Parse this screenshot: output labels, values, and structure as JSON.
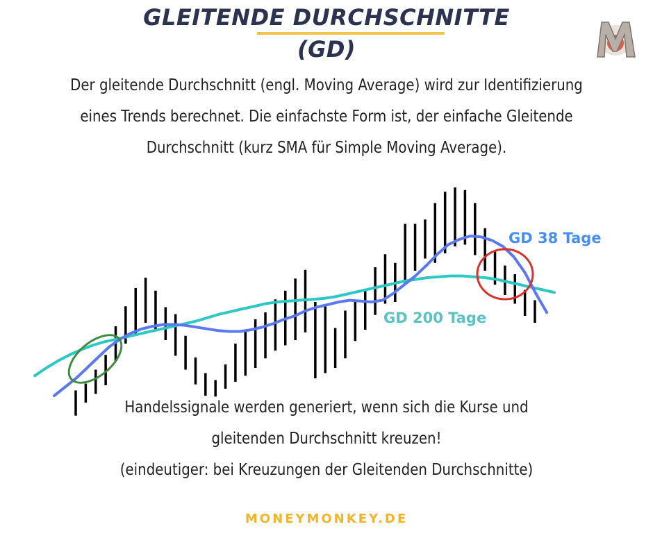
{
  "header": {
    "title_line1": "GLEITENDE DURCHSCHNITTE",
    "title_line2": "(GD)"
  },
  "intro_text": "Der gleitende Durchschnitt (engl. Moving Average) wird zur Identifizierung eines Trends berechnet. Die einfachste Form ist, der einfache Gleitende Durchschnitt (kurz SMA für Simple Moving Average).",
  "signal_text": {
    "line1": "Handelssignale werden generiert, wenn sich die Kurse und",
    "line2": "gleitenden Durchschnitt kreuzen!",
    "line3": "(eindeutiger: bei Kreuzungen der Gleitenden Durchschnitte)"
  },
  "footer": "MONEYMONKEY.DE",
  "logo": {
    "icon": "monkey-m-logo-icon",
    "letter": "M"
  },
  "colors": {
    "title": "#2c3350",
    "underline": "#f2c24a",
    "gd38": "#5b78ee",
    "gd200": "#2ec8c4",
    "green_circle": "#3e8c3e",
    "red_circle": "#d9302a",
    "footer": "#f2b52a"
  },
  "chart_data": {
    "type": "line",
    "series": [
      {
        "name": "GD 38 Tage",
        "values": [
          12,
          22,
          32,
          44,
          56,
          68,
          77,
          84,
          89,
          92,
          94,
          94,
          93,
          91,
          89,
          87,
          86,
          86,
          88,
          91,
          95,
          100,
          104,
          110,
          114,
          117,
          120,
          122,
          121,
          120,
          122,
          130,
          140,
          150,
          162,
          175,
          186,
          192,
          196,
          195,
          191,
          184,
          172,
          154,
          130,
          108
        ]
      },
      {
        "name": "GD 200 Tage",
        "values": [
          35,
          44,
          52,
          59,
          65,
          70,
          74,
          77,
          80,
          83,
          86,
          89,
          92,
          95,
          98,
          102,
          106,
          109,
          112,
          115,
          118,
          120,
          121,
          122,
          123,
          124,
          126,
          129,
          132,
          135,
          138,
          141,
          144,
          146,
          148,
          149,
          150,
          150,
          149,
          148,
          146,
          143,
          140,
          137,
          134,
          131
        ]
      }
    ],
    "ohlc": [
      [
        -11,
        18
      ],
      [
        4,
        26
      ],
      [
        14,
        42
      ],
      [
        24,
        59
      ],
      [
        52,
        92
      ],
      [
        72,
        115
      ],
      [
        82,
        136
      ],
      [
        96,
        148
      ],
      [
        86,
        133
      ],
      [
        76,
        114
      ],
      [
        58,
        106
      ],
      [
        42,
        81
      ],
      [
        25,
        56
      ],
      [
        12,
        38
      ],
      [
        11,
        30
      ],
      [
        20,
        48
      ],
      [
        28,
        72
      ],
      [
        35,
        87
      ],
      [
        44,
        100
      ],
      [
        55,
        108
      ],
      [
        64,
        123
      ],
      [
        70,
        133
      ],
      [
        76,
        147
      ],
      [
        85,
        157
      ],
      [
        32,
        120
      ],
      [
        38,
        115
      ],
      [
        44,
        90
      ],
      [
        55,
        110
      ],
      [
        75,
        120
      ],
      [
        88,
        135
      ],
      [
        105,
        160
      ],
      [
        118,
        175
      ],
      [
        120,
        165
      ],
      [
        140,
        210
      ],
      [
        156,
        210
      ],
      [
        170,
        215
      ],
      [
        165,
        234
      ],
      [
        176,
        247
      ],
      [
        184,
        252
      ],
      [
        186,
        249
      ],
      [
        174,
        234
      ],
      [
        156,
        205
      ],
      [
        140,
        179
      ],
      [
        128,
        162
      ],
      [
        118,
        152
      ],
      [
        104,
        134
      ],
      [
        96,
        122
      ]
    ],
    "annotations": [
      {
        "text": "GD 38 Tage"
      },
      {
        "text": "GD 200 Tage"
      }
    ]
  }
}
